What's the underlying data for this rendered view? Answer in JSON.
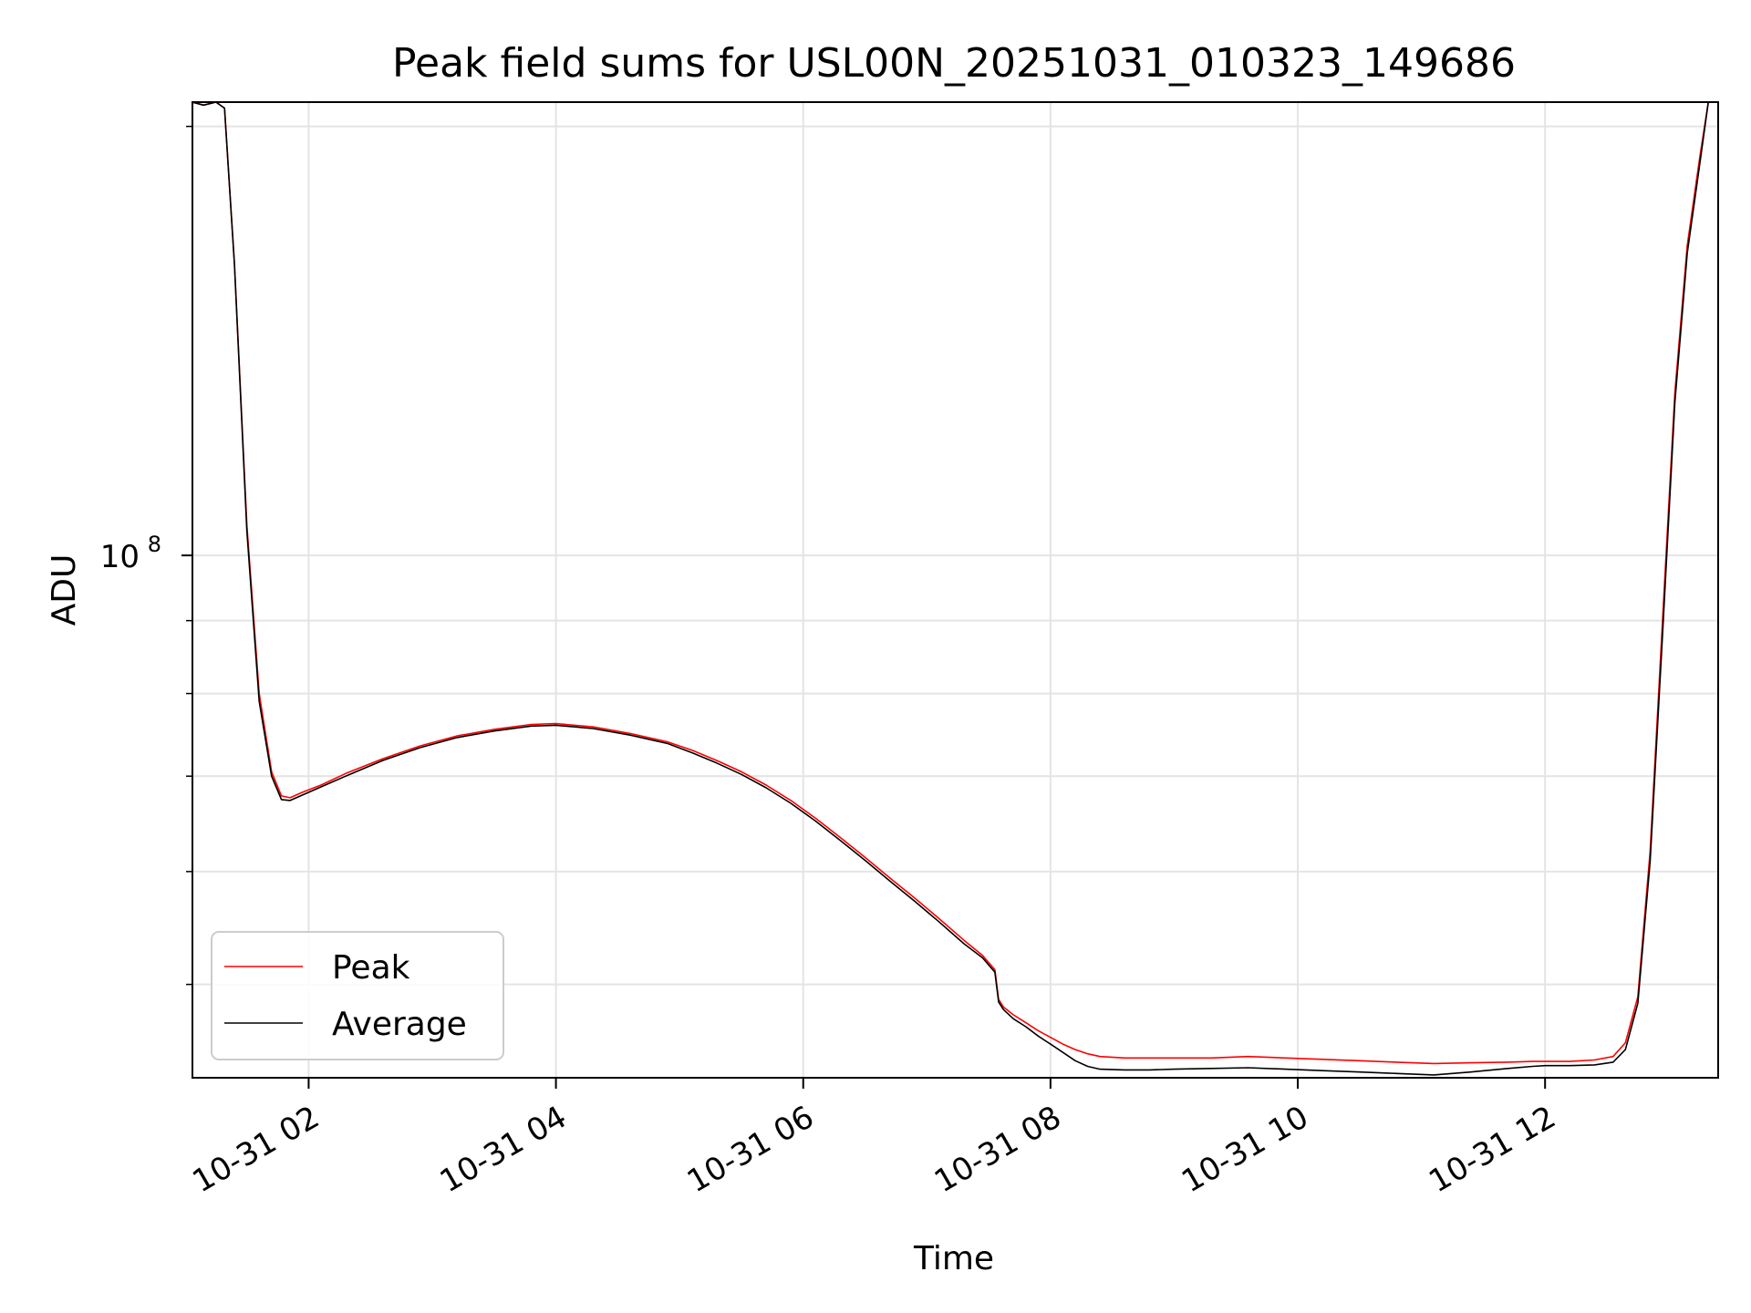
{
  "chart_data": {
    "type": "line",
    "title": "Peak field sums for USL00N_20251031_010323_149686",
    "xlabel": "Time",
    "ylabel": "ADU",
    "yscale": "log",
    "grid": true,
    "legend_position": "lower-left",
    "x_unit": "hours since 2025-10-31 00:00",
    "xlim": [
      1.06,
      13.4
    ],
    "ylim": [
      43000000,
      208000000
    ],
    "x_ticks": [
      {
        "value": 2,
        "label": "10-31 02"
      },
      {
        "value": 4,
        "label": "10-31 04"
      },
      {
        "value": 6,
        "label": "10-31 06"
      },
      {
        "value": 8,
        "label": "10-31 08"
      },
      {
        "value": 10,
        "label": "10-31 10"
      },
      {
        "value": 12,
        "label": "10-31 12"
      }
    ],
    "y_major_tick": {
      "value": 100000000,
      "base": "10",
      "exponent": "8"
    },
    "y_minor_ticks": [
      50000000,
      60000000,
      70000000,
      80000000,
      90000000,
      200000000
    ],
    "series": [
      {
        "name": "Peak",
        "color": "#ff0000",
        "x": [
          1.06,
          1.15,
          1.25,
          1.32,
          1.4,
          1.5,
          1.6,
          1.7,
          1.78,
          1.85,
          1.95,
          2.1,
          2.3,
          2.6,
          2.9,
          3.2,
          3.5,
          3.8,
          4.0,
          4.3,
          4.6,
          4.9,
          5.1,
          5.3,
          5.5,
          5.7,
          5.9,
          6.1,
          6.3,
          6.5,
          6.7,
          6.9,
          7.1,
          7.3,
          7.45,
          7.55,
          7.58,
          7.62,
          7.7,
          7.8,
          7.9,
          8.0,
          8.1,
          8.2,
          8.3,
          8.4,
          8.6,
          8.8,
          9.0,
          9.3,
          9.6,
          9.9,
          10.2,
          10.5,
          10.8,
          11.1,
          11.4,
          11.7,
          11.9,
          12.0,
          12.2,
          12.4,
          12.55,
          12.65,
          12.75,
          12.85,
          12.95,
          13.05,
          13.15,
          13.25,
          13.32,
          13.4
        ],
        "values": [
          208000000,
          207000000,
          208000000,
          206000000,
          160000000,
          105000000,
          80000000,
          70500000,
          67800000,
          67600000,
          68200000,
          69000000,
          70300000,
          72000000,
          73500000,
          74700000,
          75500000,
          76100000,
          76200000,
          75800000,
          75000000,
          74000000,
          73000000,
          71800000,
          70500000,
          69000000,
          67300000,
          65400000,
          63400000,
          61400000,
          59400000,
          57500000,
          55600000,
          53700000,
          52400000,
          51200000,
          48800000,
          48200000,
          47600000,
          47000000,
          46400000,
          45900000,
          45400000,
          45000000,
          44700000,
          44500000,
          44400000,
          44400000,
          44400000,
          44400000,
          44500000,
          44400000,
          44300000,
          44200000,
          44100000,
          44000000,
          44050000,
          44100000,
          44150000,
          44150000,
          44150000,
          44250000,
          44500000,
          45500000,
          49000000,
          62000000,
          90000000,
          130000000,
          165000000,
          190000000,
          208000000,
          208000000
        ]
      },
      {
        "name": "Average",
        "color": "#000000",
        "x": [
          1.06,
          1.15,
          1.25,
          1.32,
          1.4,
          1.5,
          1.6,
          1.7,
          1.78,
          1.85,
          1.95,
          2.1,
          2.3,
          2.6,
          2.9,
          3.2,
          3.5,
          3.8,
          4.0,
          4.3,
          4.6,
          4.9,
          5.1,
          5.3,
          5.5,
          5.7,
          5.9,
          6.1,
          6.3,
          6.5,
          6.7,
          6.9,
          7.1,
          7.3,
          7.45,
          7.55,
          7.58,
          7.62,
          7.7,
          7.8,
          7.9,
          8.0,
          8.1,
          8.2,
          8.3,
          8.4,
          8.6,
          8.8,
          9.0,
          9.3,
          9.6,
          9.9,
          10.2,
          10.5,
          10.8,
          11.1,
          11.4,
          11.7,
          11.9,
          12.0,
          12.2,
          12.4,
          12.55,
          12.65,
          12.75,
          12.85,
          12.95,
          13.05,
          13.15,
          13.25,
          13.32,
          13.4
        ],
        "values": [
          208000000,
          207000000,
          208000000,
          206000000,
          160000000,
          104000000,
          79000000,
          70000000,
          67400000,
          67300000,
          67900000,
          68800000,
          70000000,
          71800000,
          73300000,
          74500000,
          75300000,
          75900000,
          76000000,
          75600000,
          74800000,
          73800000,
          72700000,
          71500000,
          70200000,
          68700000,
          67000000,
          65100000,
          63100000,
          61100000,
          59100000,
          57200000,
          55300000,
          53400000,
          52200000,
          51000000,
          48600000,
          48000000,
          47300000,
          46700000,
          46000000,
          45400000,
          44800000,
          44200000,
          43800000,
          43600000,
          43550000,
          43550000,
          43600000,
          43650000,
          43700000,
          43600000,
          43500000,
          43400000,
          43300000,
          43200000,
          43400000,
          43650000,
          43800000,
          43850000,
          43850000,
          43900000,
          44100000,
          45000000,
          48500000,
          61000000,
          88000000,
          128000000,
          163000000,
          188000000,
          208000000,
          208000000
        ]
      }
    ]
  }
}
